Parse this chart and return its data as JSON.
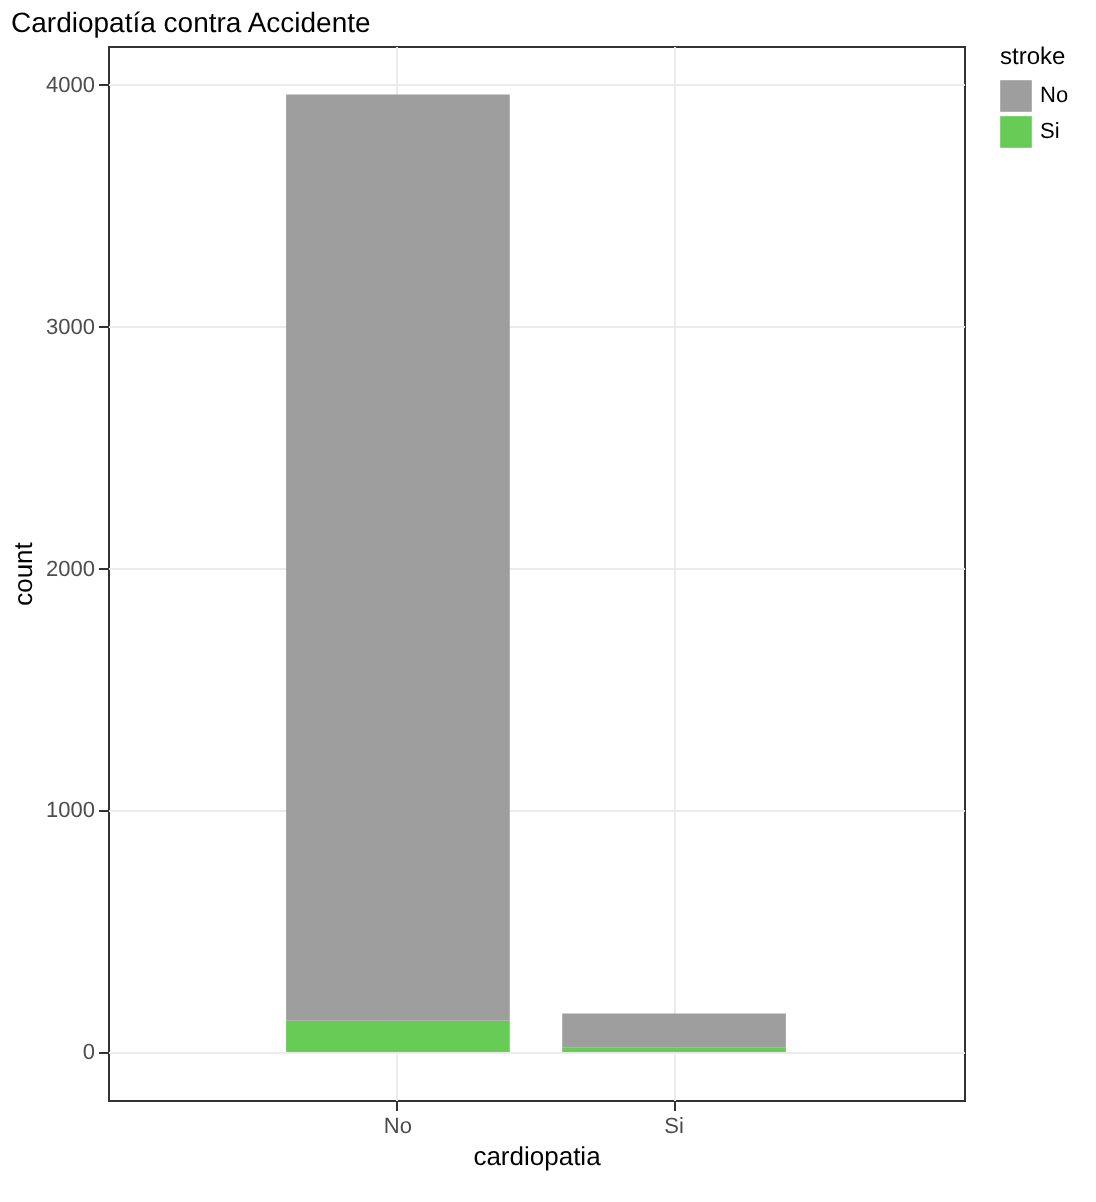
{
  "chart_data": {
    "type": "bar",
    "title": "Cardiopatía contra Accidente",
    "xlabel": "cardiopatia",
    "ylabel": "count",
    "legend_title": "stroke",
    "categories": [
      "No",
      "Si"
    ],
    "series": [
      {
        "name": "Si",
        "color": "#66cc55",
        "values": [
          130,
          20
        ]
      },
      {
        "name": "No",
        "color": "#9e9e9e",
        "values": [
          3830,
          140
        ]
      }
    ],
    "stacked": true,
    "ylim": [
      -198,
      4161
    ],
    "yticks": [
      0,
      1000,
      2000,
      3000,
      4000
    ],
    "grid": true,
    "legend": "right"
  }
}
